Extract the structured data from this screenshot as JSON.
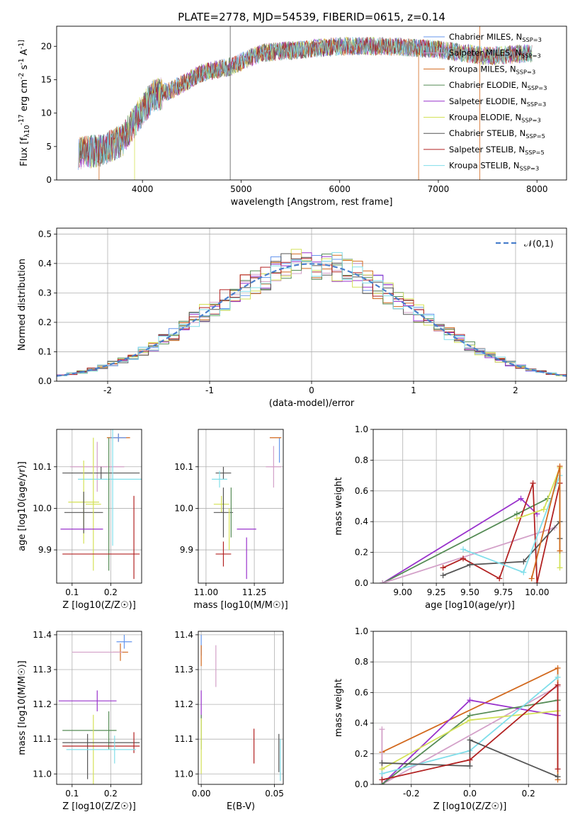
{
  "figure_title": "PLATE=2778, MJD=54539, FIBERID=0615, z=0.14",
  "colors": {
    "chabrier_miles": "#6495ed",
    "salpeter_miles": "#d3a0c8",
    "kroupa_miles": "#d2691e",
    "chabrier_elodie": "#558b55",
    "salpeter_elodie": "#9932cc",
    "kroupa_elodie": "#d4e157",
    "chabrier_stelib": "#555555",
    "salpeter_stelib": "#b22222",
    "kroupa_stelib": "#80deea"
  },
  "chart_data": [
    {
      "id": "spectrum",
      "type": "line",
      "xlabel": "wavelength [Angstrom, rest frame]",
      "ylabel": "Flux [f_λ10^-17 erg cm^-2 s^-1 A^-1]",
      "xlim": [
        3130,
        8300
      ],
      "ylim": [
        0,
        23
      ],
      "xticks": [
        4000,
        5000,
        6000,
        7000,
        8000
      ],
      "yticks": [
        0,
        5,
        10,
        15,
        20
      ],
      "legend_position": "upper-right",
      "data_range": [
        3350,
        7950
      ],
      "spectrum_shape": [
        [
          3350,
          4.0
        ],
        [
          3600,
          4.5
        ],
        [
          3800,
          6.0
        ],
        [
          3950,
          9.5
        ],
        [
          4100,
          12.5
        ],
        [
          4300,
          13.5
        ],
        [
          4600,
          16.0
        ],
        [
          4900,
          17.0
        ],
        [
          5200,
          19.0
        ],
        [
          5600,
          19.5
        ],
        [
          6000,
          20.0
        ],
        [
          6500,
          20.0
        ],
        [
          7000,
          19.5
        ],
        [
          7500,
          18.5
        ],
        [
          7950,
          19.0
        ]
      ],
      "series": [
        {
          "name": "Chabrier MILES, N_SSP=3",
          "color": "#6495ed"
        },
        {
          "name": "Salpeter MILES, N_SSP=3",
          "color": "#d3a0c8"
        },
        {
          "name": "Kroupa MILES, N_SSP=3",
          "color": "#d2691e"
        },
        {
          "name": "Chabrier ELODIE, N_SSP=3",
          "color": "#558b55"
        },
        {
          "name": "Salpeter ELODIE, N_SSP=3",
          "color": "#9932cc"
        },
        {
          "name": "Kroupa ELODIE, N_SSP=3",
          "color": "#d4e157"
        },
        {
          "name": "Chabrier STELIB, N_SSP=5",
          "color": "#555555"
        },
        {
          "name": "Salpeter STELIB, N_SSP=5",
          "color": "#b22222"
        },
        {
          "name": "Kroupa STELIB, N_SSP=3",
          "color": "#80deea"
        }
      ]
    },
    {
      "id": "residuals",
      "type": "histogram",
      "xlabel": "(data-model)/error",
      "ylabel": "Normed distribution",
      "xlim": [
        -2.5,
        2.5
      ],
      "ylim": [
        0,
        0.52
      ],
      "xticks": [
        -2,
        -1,
        0,
        1,
        2
      ],
      "yticks": [
        0.0,
        0.1,
        0.2,
        0.3,
        0.4,
        0.5
      ],
      "grid": true,
      "legend_position": "upper-right",
      "reference_curve": {
        "name": "𝒩(0,1)",
        "mu": 0,
        "sigma": 1,
        "color": "#4a7fcc"
      },
      "bin_width": 0.1
    },
    {
      "id": "age_vs_Z",
      "type": "errorbar",
      "xlabel": "Z [log10(Z/Z☉)]",
      "ylabel": "age [log10(age/yr)]",
      "xlim": [
        0.06,
        0.28
      ],
      "ylim": [
        9.82,
        10.19
      ],
      "xticks": [
        0.1,
        0.2
      ],
      "yticks": [
        9.9,
        10.0,
        10.1
      ],
      "grid": true,
      "points": [
        {
          "x": 0.22,
          "xerr": 0.03,
          "y": 10.17,
          "yerr": 0.01,
          "color": "#d2691e"
        },
        {
          "x": 0.22,
          "xerr": 0.02,
          "y": 10.17,
          "yerr": 0.01,
          "color": "#6495ed"
        },
        {
          "x": 0.165,
          "xerr": 0.07,
          "y": 10.1,
          "yerr": 0.06,
          "color": "#d3a0c8"
        },
        {
          "x": 0.175,
          "xerr": 0.1,
          "y": 10.085,
          "yerr": 0.015,
          "color": "#555555"
        },
        {
          "x": 0.205,
          "xerr": 0.09,
          "y": 10.07,
          "yerr": 0.16,
          "color": "#80deea"
        },
        {
          "x": 0.13,
          "xerr": 0.04,
          "y": 10.015,
          "yerr": 0.1,
          "color": "#d4e157"
        },
        {
          "x": 0.13,
          "xerr": 0.05,
          "y": 9.99,
          "yerr": 0.05,
          "color": "#555555"
        },
        {
          "x": 0.155,
          "xerr": 0.02,
          "y": 10.01,
          "yerr": 0.16,
          "color": "#d4e157"
        },
        {
          "x": 0.195,
          "xerr": 0.0,
          "y": 10.01,
          "yerr": 0.16,
          "color": "#558b55"
        },
        {
          "x": 0.125,
          "xerr": 0.055,
          "y": 9.95,
          "yerr": 0.0,
          "color": "#9932cc"
        },
        {
          "x": 0.175,
          "xerr": 0.1,
          "y": 9.89,
          "yerr": 0.0,
          "color": "#b22222"
        },
        {
          "x": 0.26,
          "xerr": 0.0,
          "y": 9.93,
          "yerr": 0.1,
          "color": "#b22222"
        }
      ]
    },
    {
      "id": "age_vs_mass",
      "type": "errorbar",
      "xlabel": "mass [log10(M/M☉)]",
      "ylabel": "",
      "xlim": [
        10.96,
        11.4
      ],
      "ylim": [
        9.82,
        10.19
      ],
      "xticks": [
        11.0,
        11.25
      ],
      "yticks": [
        9.9,
        10.0,
        10.1
      ],
      "grid": true,
      "points": [
        {
          "x": 11.38,
          "xerr": 0.0,
          "y": 10.14,
          "yerr": 0.03,
          "color": "#6495ed"
        },
        {
          "x": 11.36,
          "xerr": 0.03,
          "y": 10.17,
          "yerr": 0.0,
          "color": "#d2691e"
        },
        {
          "x": 11.35,
          "xerr": 0.04,
          "y": 10.1,
          "yerr": 0.05,
          "color": "#d3a0c8"
        },
        {
          "x": 11.09,
          "xerr": 0.04,
          "y": 10.085,
          "yerr": 0.015,
          "color": "#555555"
        },
        {
          "x": 11.07,
          "xerr": 0.04,
          "y": 10.07,
          "yerr": 0.02,
          "color": "#80deea"
        },
        {
          "x": 11.08,
          "xerr": 0.04,
          "y": 10.01,
          "yerr": 0.02,
          "color": "#d4e157"
        },
        {
          "x": 11.09,
          "xerr": 0.05,
          "y": 9.99,
          "yerr": 0.06,
          "color": "#555555"
        },
        {
          "x": 11.13,
          "xerr": 0.0,
          "y": 9.99,
          "yerr": 0.06,
          "color": "#558b55"
        },
        {
          "x": 11.21,
          "xerr": 0.05,
          "y": 9.95,
          "yerr": 0.0,
          "color": "#9932cc"
        },
        {
          "x": 11.21,
          "xerr": 0.0,
          "y": 9.88,
          "yerr": 0.05,
          "color": "#9932cc"
        },
        {
          "x": 11.09,
          "xerr": 0.04,
          "y": 9.89,
          "yerr": 0.03,
          "color": "#b22222"
        },
        {
          "x": 11.12,
          "xerr": 0.0,
          "y": 9.95,
          "yerr": 0.05,
          "color": "#d4e157"
        }
      ]
    },
    {
      "id": "mass_weight_vs_age",
      "type": "line",
      "xlabel": "age [log10(age/yr)]",
      "ylabel": "mass weight",
      "xlim": [
        8.78,
        10.22
      ],
      "ylim": [
        0,
        1.0
      ],
      "xticks": [
        9.0,
        9.25,
        9.5,
        9.75,
        10.0
      ],
      "yticks": [
        0.0,
        0.2,
        0.4,
        0.6,
        0.8,
        1.0
      ],
      "grid": true,
      "series": [
        {
          "color": "#9932cc",
          "x": [
            8.85,
            9.88,
            10.0
          ],
          "y": [
            0.0,
            0.55,
            0.45
          ]
        },
        {
          "color": "#558b55",
          "x": [
            8.85,
            9.85,
            10.08
          ],
          "y": [
            0.0,
            0.45,
            0.55
          ]
        },
        {
          "color": "#d3a0c8",
          "x": [
            8.85,
            10.13
          ],
          "y": [
            0.0,
            0.36
          ]
        },
        {
          "color": "#b22222",
          "x": [
            9.3,
            9.45,
            9.72,
            9.97,
            10.0,
            10.17
          ],
          "y": [
            0.1,
            0.16,
            0.03,
            0.65,
            0.0,
            0.65
          ]
        },
        {
          "color": "#555555",
          "x": [
            9.3,
            9.5,
            9.9,
            10.17,
            10.17
          ],
          "y": [
            0.05,
            0.12,
            0.14,
            0.4,
            0.29
          ]
        },
        {
          "color": "#80deea",
          "x": [
            9.45,
            9.9,
            10.17
          ],
          "y": [
            0.22,
            0.07,
            0.7
          ]
        },
        {
          "color": "#d4e157",
          "x": [
            9.85,
            10.05,
            10.17,
            10.17
          ],
          "y": [
            0.42,
            0.48,
            0.75,
            0.1
          ]
        },
        {
          "color": "#d2691e",
          "x": [
            9.96,
            10.17,
            10.17
          ],
          "y": [
            0.03,
            0.76,
            0.21
          ]
        }
      ]
    },
    {
      "id": "mass_vs_Z",
      "type": "errorbar",
      "xlabel": "Z [log10(Z/Z☉)]",
      "ylabel": "mass [log10(M/M☉)]",
      "xlim": [
        0.06,
        0.28
      ],
      "ylim": [
        10.97,
        11.41
      ],
      "xticks": [
        0.1,
        0.2
      ],
      "yticks": [
        11.0,
        11.1,
        11.2,
        11.3,
        11.4
      ],
      "grid": true,
      "points": [
        {
          "x": 0.235,
          "xerr": 0.02,
          "y": 11.38,
          "yerr": 0.02,
          "color": "#6495ed"
        },
        {
          "x": 0.225,
          "xerr": 0.02,
          "y": 11.35,
          "yerr": 0.025,
          "color": "#d2691e"
        },
        {
          "x": 0.165,
          "xerr": 0.065,
          "y": 11.35,
          "yerr": 0.0,
          "color": "#d3a0c8"
        },
        {
          "x": 0.165,
          "xerr": 0.0,
          "y": 11.21,
          "yerr": 0.03,
          "color": "#9932cc"
        },
        {
          "x": 0.14,
          "xerr": 0.075,
          "y": 11.21,
          "yerr": 0.0,
          "color": "#9932cc"
        },
        {
          "x": 0.145,
          "xerr": 0.07,
          "y": 11.125,
          "yerr": 0.0,
          "color": "#558b55"
        },
        {
          "x": 0.195,
          "xerr": 0.0,
          "y": 11.125,
          "yerr": 0.055,
          "color": "#558b55"
        },
        {
          "x": 0.155,
          "xerr": 0.0,
          "y": 11.07,
          "yerr": 0.1,
          "color": "#d4e157"
        },
        {
          "x": 0.175,
          "xerr": 0.1,
          "y": 11.09,
          "yerr": 0.0,
          "color": "#555555"
        },
        {
          "x": 0.14,
          "xerr": 0.0,
          "y": 11.05,
          "yerr": 0.065,
          "color": "#555555"
        },
        {
          "x": 0.175,
          "xerr": 0.1,
          "y": 11.08,
          "yerr": 0.0,
          "color": "#b22222"
        },
        {
          "x": 0.26,
          "xerr": 0.0,
          "y": 11.09,
          "yerr": 0.03,
          "color": "#b22222"
        },
        {
          "x": 0.175,
          "xerr": 0.09,
          "y": 11.07,
          "yerr": 0.0,
          "color": "#80deea"
        },
        {
          "x": 0.21,
          "xerr": 0.0,
          "y": 11.07,
          "yerr": 0.04,
          "color": "#80deea"
        }
      ]
    },
    {
      "id": "mass_vs_ebv",
      "type": "errorbar",
      "xlabel": "E(B-V)",
      "ylabel": "",
      "xlim": [
        -0.002,
        0.056
      ],
      "ylim": [
        10.97,
        11.41
      ],
      "xticks": [
        0.0,
        0.05
      ],
      "yticks": [
        11.0,
        11.1,
        11.2,
        11.3,
        11.4
      ],
      "grid": true,
      "points": [
        {
          "x": 0.0,
          "xerr": 0.0,
          "y": 11.37,
          "yerr": 0.03,
          "color": "#6495ed"
        },
        {
          "x": 0.0,
          "xerr": 0.0,
          "y": 11.34,
          "yerr": 0.03,
          "color": "#d2691e"
        },
        {
          "x": 0.01,
          "xerr": 0.0,
          "y": 11.31,
          "yerr": 0.06,
          "color": "#d3a0c8"
        },
        {
          "x": 0.0,
          "xerr": 0.0,
          "y": 11.2,
          "yerr": 0.04,
          "color": "#9932cc"
        },
        {
          "x": 0.0,
          "xerr": 0.0,
          "y": 11.12,
          "yerr": 0.05,
          "color": "#558b55"
        },
        {
          "x": 0.0,
          "xerr": 0.0,
          "y": 11.08,
          "yerr": 0.08,
          "color": "#d4e157"
        },
        {
          "x": 0.036,
          "xerr": 0.0,
          "y": 11.08,
          "yerr": 0.05,
          "color": "#b22222"
        },
        {
          "x": 0.053,
          "xerr": 0.0,
          "y": 11.06,
          "yerr": 0.055,
          "color": "#555555"
        },
        {
          "x": 0.054,
          "xerr": 0.0,
          "y": 11.04,
          "yerr": 0.06,
          "color": "#80deea"
        }
      ]
    },
    {
      "id": "mass_weight_vs_Z",
      "type": "line",
      "xlabel": "Z [log10(Z/Z☉)]",
      "ylabel": "mass weight",
      "xlim": [
        -0.33,
        0.33
      ],
      "ylim": [
        0,
        1.0
      ],
      "xticks": [
        -0.2,
        0.0,
        0.2
      ],
      "yticks": [
        0.0,
        0.2,
        0.4,
        0.6,
        0.8,
        1.0
      ],
      "grid": true,
      "series": [
        {
          "color": "#d2691e",
          "x": [
            -0.3,
            0.3,
            0.3
          ],
          "y": [
            0.21,
            0.76,
            0.03
          ]
        },
        {
          "color": "#d3a0c8",
          "x": [
            -0.3,
            -0.3,
            0.3
          ],
          "y": [
            0.36,
            0.0,
            0.64
          ]
        },
        {
          "color": "#9932cc",
          "x": [
            -0.3,
            0.0,
            0.3
          ],
          "y": [
            0.0,
            0.55,
            0.45
          ]
        },
        {
          "color": "#558b55",
          "x": [
            -0.3,
            0.0,
            0.3
          ],
          "y": [
            0.0,
            0.45,
            0.55
          ]
        },
        {
          "color": "#d4e157",
          "x": [
            -0.3,
            0.0,
            0.3
          ],
          "y": [
            0.1,
            0.42,
            0.48
          ]
        },
        {
          "color": "#80deea",
          "x": [
            -0.3,
            0.0,
            0.3
          ],
          "y": [
            0.07,
            0.22,
            0.7
          ]
        },
        {
          "color": "#555555",
          "x": [
            -0.3,
            0.0,
            0.0,
            0.3
          ],
          "y": [
            0.14,
            0.12,
            0.29,
            0.05
          ]
        },
        {
          "color": "#b22222",
          "x": [
            -0.3,
            0.0,
            0.3,
            0.3
          ],
          "y": [
            0.03,
            0.16,
            0.65,
            0.1
          ]
        }
      ]
    }
  ]
}
